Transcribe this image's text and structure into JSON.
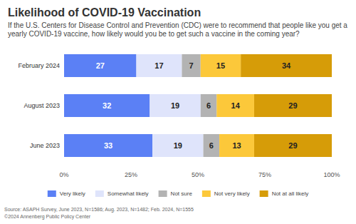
{
  "chart_data": {
    "type": "bar",
    "orientation": "horizontal",
    "stacked": true,
    "title": "Likelihood of COVID-19 Vaccination",
    "subtitle": "If the U.S. Centers for Disease Control and Prevention (CDC) were to recommend that people like you get a yearly COVID-19 vaccine, how likely would you be to get such a vaccine in the coming year?",
    "categories": [
      "February 2024",
      "August 2023",
      "June 2023"
    ],
    "series": [
      {
        "name": "Very likely",
        "color": "#5b80f5",
        "values": [
          27,
          32,
          33
        ]
      },
      {
        "name": "Somewhat likely",
        "color": "#dfe4fb",
        "values": [
          17,
          19,
          19
        ]
      },
      {
        "name": "Not sure",
        "color": "#b3b3b3",
        "values": [
          7,
          6,
          6
        ]
      },
      {
        "name": "Not very likely",
        "color": "#fcc83a",
        "values": [
          15,
          14,
          13
        ]
      },
      {
        "name": "Not at all likely",
        "color": "#d69c08",
        "values": [
          34,
          29,
          29
        ]
      }
    ],
    "xlim": [
      0,
      100
    ],
    "xticks": [
      {
        "value": 0,
        "label": "0%"
      },
      {
        "value": 25,
        "label": "25%"
      },
      {
        "value": 50,
        "label": "50%"
      },
      {
        "value": 75,
        "label": "75%"
      },
      {
        "value": 100,
        "label": "100%"
      }
    ],
    "grid": false,
    "legend": "bottom",
    "data_labels": true,
    "annotations": [
      "Source: ASAPH Survey, June 2023, N=1586; Aug. 2023, N=1482; Feb. 2024, N=1555",
      "©2024 Annenberg Public Policy Center"
    ]
  }
}
